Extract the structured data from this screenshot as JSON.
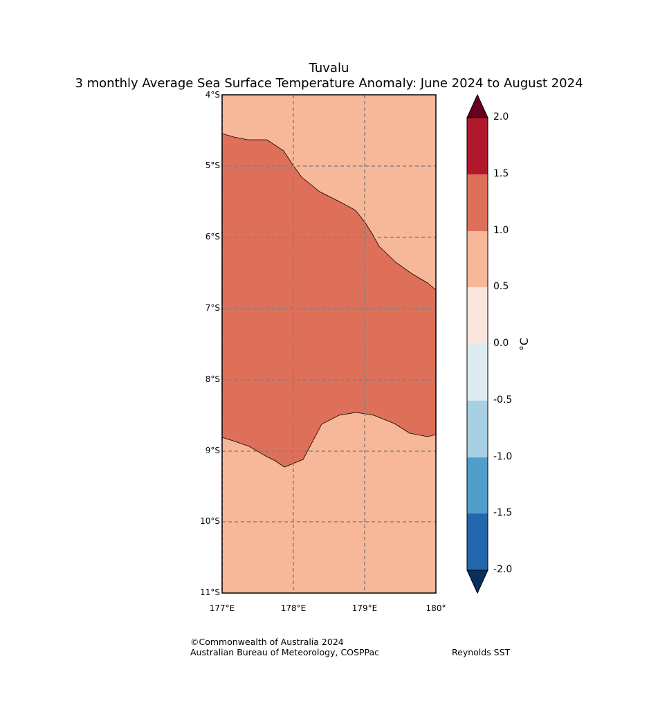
{
  "title": {
    "line1": "Tuvalu",
    "line2": "3 monthly Average Sea Surface Temperature Anomaly: June 2024 to August 2024"
  },
  "map": {
    "lat_labels": [
      "4°S",
      "5°S",
      "6°S",
      "7°S",
      "8°S",
      "9°S",
      "10°S",
      "11°S"
    ],
    "lon_labels": [
      "177°E",
      "178°E",
      "179°E",
      "180°"
    ],
    "background_color": "#f7b799",
    "anomaly_band_color": "#de6f59",
    "anomaly_band_range": "1.0 to 1.5"
  },
  "colorbar": {
    "unit": "°C",
    "ticks": [
      "2.0",
      "1.5",
      "1.0",
      "0.5",
      "0.0",
      "-0.5",
      "-1.0",
      "-1.5",
      "-2.0"
    ],
    "colors": [
      "#67001f",
      "#b2182b",
      "#de6f59",
      "#f7b799",
      "#f9e5dc",
      "#deebf1",
      "#a8d0e5",
      "#529ecb",
      "#2266ad",
      "#053061"
    ]
  },
  "credits": {
    "copyright": "©Commonwealth of Australia 2024",
    "org": "Australian Bureau of Meteorology, COSPPac",
    "source": "Reynolds SST"
  }
}
